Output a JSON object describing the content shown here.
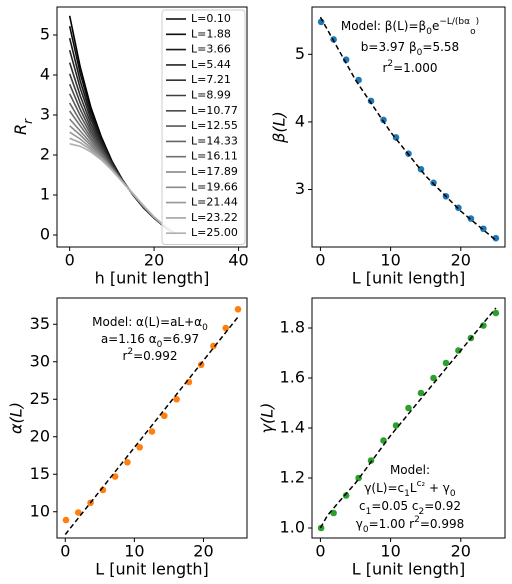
{
  "chart_data": [
    {
      "type": "line",
      "ylabel": [
        "R",
        {
          "sub": "r"
        }
      ],
      "xlabel": "h [unit length]",
      "xlim": [
        -3,
        42
      ],
      "xticks": [
        0,
        20,
        40
      ],
      "ylim": [
        -0.3,
        5.7
      ],
      "yticks": [
        0,
        1,
        2,
        3,
        4,
        5
      ],
      "legend": "upper right",
      "x": [
        0,
        2.5,
        5,
        7.5,
        10,
        12.5,
        15,
        17.5,
        20,
        22.5,
        25
      ],
      "series": [
        {
          "name": "L=0.10",
          "color": "#000000",
          "values": [
            5.48,
            4.2,
            3.2,
            2.45,
            1.85,
            1.38,
            1.0,
            0.68,
            0.42,
            0.2,
            0.03
          ]
        },
        {
          "name": "L=1.88",
          "color": "#0d0d0d",
          "values": [
            5.22,
            4.04,
            3.11,
            2.4,
            1.83,
            1.38,
            1.0,
            0.68,
            0.42,
            0.2,
            0.03
          ]
        },
        {
          "name": "L=3.66",
          "color": "#191919",
          "values": [
            4.92,
            3.85,
            3.0,
            2.35,
            1.81,
            1.37,
            1.01,
            0.69,
            0.43,
            0.2,
            0.03
          ]
        },
        {
          "name": "L=5.44",
          "color": "#262626",
          "values": [
            4.62,
            3.67,
            2.9,
            2.3,
            1.79,
            1.37,
            1.01,
            0.69,
            0.43,
            0.21,
            0.03
          ]
        },
        {
          "name": "L=7.21",
          "color": "#323232",
          "values": [
            4.31,
            3.48,
            2.79,
            2.24,
            1.77,
            1.36,
            1.01,
            0.7,
            0.43,
            0.21,
            0.03
          ]
        },
        {
          "name": "L=8.99",
          "color": "#3f3f3f",
          "values": [
            4.03,
            3.3,
            2.69,
            2.19,
            1.75,
            1.36,
            1.01,
            0.7,
            0.43,
            0.21,
            0.03
          ]
        },
        {
          "name": "L=10.77",
          "color": "#4b4b4b",
          "values": [
            3.77,
            3.14,
            2.6,
            2.15,
            1.73,
            1.35,
            1.02,
            0.71,
            0.44,
            0.21,
            0.03
          ]
        },
        {
          "name": "L=12.55",
          "color": "#585858",
          "values": [
            3.53,
            2.99,
            2.52,
            2.1,
            1.71,
            1.35,
            1.02,
            0.71,
            0.44,
            0.21,
            0.03
          ]
        },
        {
          "name": "L=14.33",
          "color": "#656565",
          "values": [
            3.3,
            2.85,
            2.44,
            2.06,
            1.69,
            1.35,
            1.02,
            0.71,
            0.44,
            0.21,
            0.03
          ]
        },
        {
          "name": "L=16.11",
          "color": "#717171",
          "values": [
            3.1,
            2.73,
            2.37,
            2.03,
            1.68,
            1.34,
            1.02,
            0.72,
            0.44,
            0.21,
            0.03
          ]
        },
        {
          "name": "L=17.89",
          "color": "#7e7e7e",
          "values": [
            2.9,
            2.6,
            2.3,
            1.99,
            1.66,
            1.34,
            1.02,
            0.72,
            0.44,
            0.22,
            0.03
          ]
        },
        {
          "name": "L=19.66",
          "color": "#8a8a8a",
          "values": [
            2.73,
            2.5,
            2.24,
            1.96,
            1.65,
            1.34,
            1.03,
            0.72,
            0.45,
            0.22,
            0.03
          ]
        },
        {
          "name": "L=21.44",
          "color": "#979797",
          "values": [
            2.57,
            2.4,
            2.18,
            1.93,
            1.64,
            1.33,
            1.03,
            0.73,
            0.45,
            0.22,
            0.03
          ]
        },
        {
          "name": "L=23.22",
          "color": "#a4a4a4",
          "values": [
            2.42,
            2.31,
            2.13,
            1.91,
            1.63,
            1.33,
            1.03,
            0.73,
            0.45,
            0.22,
            0.03
          ]
        },
        {
          "name": "L=25.00",
          "color": "#b0b0b0",
          "values": [
            2.28,
            2.22,
            2.08,
            1.88,
            1.62,
            1.33,
            1.03,
            0.73,
            0.45,
            0.22,
            0.03
          ]
        }
      ]
    },
    {
      "type": "scatter",
      "ylabel": "β(L)",
      "xlabel": "L [unit length]",
      "xlim": [
        -1.2,
        26.3
      ],
      "xticks": [
        0,
        10,
        20
      ],
      "ylim": [
        2.15,
        5.7
      ],
      "yticks": [
        3,
        4,
        5
      ],
      "annotations": [
        [
          "Model:  β(L)=β",
          {
            "sub": "0"
          },
          "e",
          {
            "sup": "−L/(bα"
          },
          {
            "sub": "o"
          },
          {
            "sup": ")"
          }
        ],
        [
          "b=3.97  β",
          {
            "sub": "0"
          },
          "=5.58"
        ],
        [
          "r",
          {
            "sup": "2"
          },
          "=1.000"
        ]
      ],
      "series": [
        {
          "kind": "points",
          "color": "#1f77b4",
          "x": [
            0.1,
            1.88,
            3.66,
            5.44,
            7.21,
            8.99,
            10.77,
            12.55,
            14.33,
            16.11,
            17.89,
            19.66,
            21.44,
            23.22,
            25.0
          ],
          "values": [
            5.48,
            5.22,
            4.92,
            4.62,
            4.31,
            4.03,
            3.77,
            3.53,
            3.3,
            3.1,
            2.9,
            2.73,
            2.57,
            2.42,
            2.28
          ]
        },
        {
          "kind": "dashed-line",
          "color": "#000000",
          "x": [
            0,
            5,
            10,
            15,
            20,
            25
          ],
          "values": [
            5.55,
            4.62,
            3.85,
            3.2,
            2.68,
            2.25
          ]
        }
      ]
    },
    {
      "type": "scatter",
      "ylabel": "α(L)",
      "xlabel": "L [unit length]",
      "xlim": [
        -1.2,
        26.3
      ],
      "xticks": [
        0,
        10,
        20
      ],
      "ylim": [
        6.5,
        38.5
      ],
      "yticks": [
        10,
        15,
        20,
        25,
        30,
        35
      ],
      "annotations": [
        [
          "Model:  α(L)=aL+α",
          {
            "sub": "0"
          }
        ],
        [
          "a=1.16 α",
          {
            "sub": "0"
          },
          "=6.97"
        ],
        [
          "r",
          {
            "sup": "2"
          },
          "=0.992"
        ]
      ],
      "series": [
        {
          "kind": "points",
          "color": "#ff7f0e",
          "x": [
            0.1,
            1.88,
            3.66,
            5.44,
            7.21,
            8.99,
            10.77,
            12.55,
            14.33,
            16.11,
            17.89,
            19.66,
            21.44,
            23.22,
            25.0
          ],
          "values": [
            8.9,
            9.9,
            11.2,
            12.9,
            14.7,
            16.6,
            18.6,
            20.7,
            22.8,
            25.0,
            27.3,
            29.6,
            32.1,
            34.5,
            37.0
          ]
        },
        {
          "kind": "dashed-line",
          "color": "#000000",
          "x": [
            0,
            25
          ],
          "values": [
            6.97,
            35.97
          ]
        }
      ]
    },
    {
      "type": "scatter",
      "ylabel": "γ(L)",
      "xlabel": "L [unit length]",
      "xlim": [
        -1.2,
        26.3
      ],
      "xticks": [
        0,
        10,
        20
      ],
      "ylim": [
        0.96,
        1.92
      ],
      "yticks": [
        {
          "value": 1,
          "label": "1.0"
        },
        1.2,
        1.4,
        1.6,
        1.8
      ],
      "annotations": [
        [
          "Model:"
        ],
        [
          "γ(L)=c",
          {
            "sub": "1"
          },
          "L",
          {
            "sup": "c₂"
          },
          " + γ",
          {
            "sub": "0"
          }
        ],
        [
          "c",
          {
            "sub": "1"
          },
          "=0.05 c",
          {
            "sub": "2"
          },
          "=0.92"
        ],
        [
          "γ",
          {
            "sub": "0"
          },
          "=1.00 r",
          {
            "sup": "2"
          },
          "=0.998"
        ]
      ],
      "series": [
        {
          "kind": "points",
          "color": "#2ca02c",
          "x": [
            0.1,
            1.88,
            3.66,
            5.44,
            7.21,
            8.99,
            10.77,
            12.55,
            14.33,
            16.11,
            17.89,
            19.66,
            21.44,
            23.22,
            25.0
          ],
          "values": [
            1.0,
            1.06,
            1.13,
            1.2,
            1.27,
            1.35,
            1.41,
            1.48,
            1.54,
            1.6,
            1.66,
            1.71,
            1.76,
            1.81,
            1.86
          ]
        },
        {
          "kind": "dashed-line",
          "color": "#000000",
          "x": [
            0,
            1,
            2.5,
            5,
            10,
            15,
            20,
            25
          ],
          "values": [
            1.0,
            1.05,
            1.1,
            1.18,
            1.37,
            1.54,
            1.71,
            1.88
          ]
        }
      ]
    }
  ]
}
